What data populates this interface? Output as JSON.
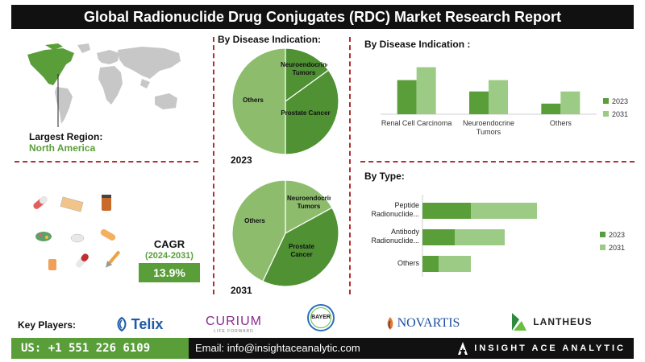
{
  "title": "Global Radionuclide Drug Conjugates (RDC) Market Research Report",
  "region": {
    "label": "Largest Region:",
    "value": "North America"
  },
  "cagr": {
    "label": "CAGR",
    "period": "(2024-2031)",
    "value": "13.9%"
  },
  "sections": {
    "disease_pie": "By Disease Indication:",
    "disease_bar": "By Disease Indication :",
    "type_bar": "By Type:"
  },
  "colors": {
    "dark_green": "#5a9e3a",
    "light_green": "#9ccb86",
    "pie_dark": "#4f9133",
    "pie_light": "#8dbd6c",
    "accent_red": "#b03030"
  },
  "chart_data": [
    {
      "type": "pie",
      "year_label": "2023",
      "slices": [
        {
          "label": "Neuroendocrine Tumors",
          "value": 15,
          "shade": "dark"
        },
        {
          "label": "Prostate Cancer",
          "value": 35,
          "shade": "dark"
        },
        {
          "label": "Others",
          "value": 50,
          "shade": "light"
        }
      ]
    },
    {
      "type": "pie",
      "year_label": "2031",
      "slices": [
        {
          "label": "Neuroendocrine Tumors",
          "value": 17,
          "shade": "light"
        },
        {
          "label": "Prostate Cancer",
          "value": 40,
          "shade": "dark"
        },
        {
          "label": "Others",
          "value": 43,
          "shade": "light"
        }
      ]
    },
    {
      "type": "bar",
      "orientation": "vertical",
      "categories": [
        "Renal Cell Carcinoma",
        "Neuroendocrine Tumors",
        "Others"
      ],
      "series": [
        {
          "name": "2023",
          "values": [
            45,
            30,
            14
          ]
        },
        {
          "name": "2031",
          "values": [
            62,
            45,
            30
          ]
        }
      ],
      "ylim": [
        0,
        70
      ],
      "legend": "right"
    },
    {
      "type": "bar",
      "orientation": "horizontal",
      "stacked": true,
      "categories": [
        "Peptide Radionuclide...",
        "Antibody Radionuclide...",
        "Others"
      ],
      "series": [
        {
          "name": "2023",
          "values": [
            30,
            20,
            10
          ]
        },
        {
          "name": "2031",
          "values": [
            41,
            31,
            20
          ]
        }
      ],
      "xlim": [
        0,
        100
      ],
      "legend": "right"
    }
  ],
  "key_players": {
    "label": "Key Players:",
    "logos": [
      {
        "name": "Telix",
        "icon": "telix-swirl-icon"
      },
      {
        "name": "CURIUM",
        "tagline": "LIFE FORWARD"
      },
      {
        "name": "BAYER",
        "icon": "bayer-cross-icon"
      },
      {
        "name": "NOVARTIS",
        "icon": "novartis-flame-icon"
      },
      {
        "name": "LANTHEUS",
        "icon": "lantheus-leaf-icon"
      }
    ]
  },
  "footer": {
    "phone": "US: +1 551 226 6109",
    "email": "Email: info@insightaceanalytic.com",
    "brand": "INSIGHT ACE ANALYTIC"
  }
}
